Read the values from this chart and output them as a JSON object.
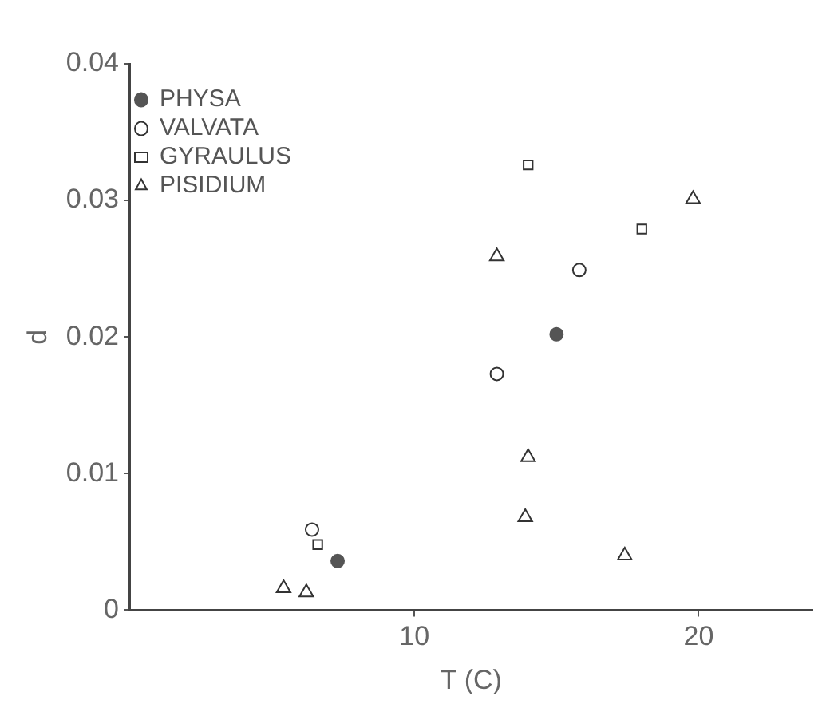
{
  "chart_data": {
    "type": "scatter",
    "xlabel": "T (C)",
    "ylabel": "d",
    "xlim": [
      0,
      24
    ],
    "xticks": [
      10,
      20
    ],
    "ylim": [
      0,
      0.04
    ],
    "yticks": [
      0,
      0.01,
      0.02,
      0.03,
      0.04
    ],
    "grid": false,
    "legend": "top left",
    "series": [
      {
        "name": "PHYSA",
        "color": "#555555",
        "marker": "circle",
        "x": [
          7.3,
          15.0
        ],
        "values": [
          0.0036,
          0.0202
        ]
      },
      {
        "name": "VALVATA",
        "color": "#333333",
        "marker": "circle",
        "x": [
          6.4,
          12.9,
          15.8
        ],
        "values": [
          0.0059,
          0.0173,
          0.0249
        ]
      },
      {
        "name": "GYRAULUS",
        "color": "#333333",
        "marker": "square",
        "x": [
          6.6,
          14.0,
          18.0
        ],
        "values": [
          0.0048,
          0.0326,
          0.0279
        ]
      },
      {
        "name": "PISIDIUM",
        "color": "#333333",
        "marker": "triangle",
        "x": [
          5.4,
          6.2,
          12.9,
          14.0,
          13.9,
          17.4,
          19.8
        ],
        "values": [
          0.0016,
          0.0013,
          0.0259,
          0.0112,
          0.0068,
          0.004,
          0.0301
        ]
      }
    ]
  }
}
